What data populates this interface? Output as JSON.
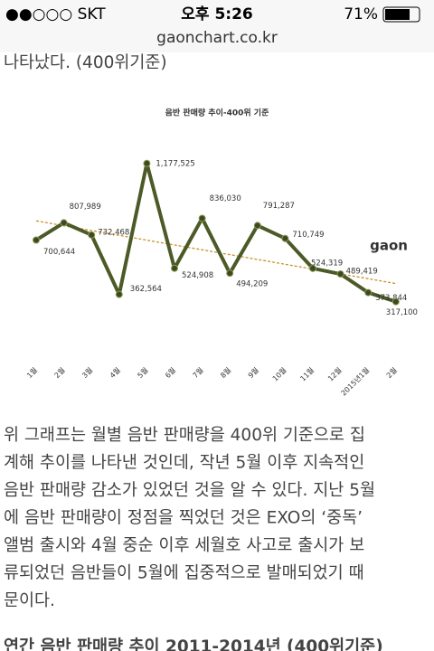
{
  "status_bar": {
    "carrier": "●●○○○ SKT",
    "time": "오후 5:26",
    "battery": "71%"
  },
  "url": "gaonchart.co.kr",
  "top_text": "나타났다. (400위기준)",
  "chart_data": {
    "type": "line",
    "title": "음반 판매량 추이-400위 기준",
    "logo": "gaon",
    "categories": [
      "1월",
      "2월",
      "3월",
      "4월",
      "5월",
      "6월",
      "7월",
      "8월",
      "9월",
      "10월",
      "11월",
      "12월",
      "2015년1월",
      "2월"
    ],
    "series": [
      {
        "name": "음반 판매량",
        "color": "#4b5a26",
        "values": [
          700644,
          807989,
          732468,
          362564,
          1177525,
          524908,
          836030,
          494209,
          791287,
          710749,
          524319,
          489419,
          373844,
          317100
        ],
        "value_labels": [
          "700,644",
          "807,989",
          "732,468",
          "362,564",
          "1,177,525",
          "524,908",
          "836,030",
          "494,209",
          "791,287",
          "710,749",
          "524,319",
          "489,419",
          "373,844",
          "317,100"
        ]
      }
    ],
    "trendline": {
      "color": "#c8902a",
      "values": [
        820000,
        430000
      ]
    },
    "ylim": [
      0,
      1300000
    ]
  },
  "paragraph": [
    "위 그래프는 월별 음반 판매량을 400위 기준으로 집",
    "계해 추이를 나타낸 것인데, 작년 5월 이후 지속적인",
    "음반 판매량 감소가 있었던 것을 알 수 있다. 지난 5월",
    "에 음반 판매량이 정점을 찍었던 것은 EXO의 ‘중독’",
    "앨범 출시와 4월 중순 이후 세월호 사고로 출시가 보",
    "류되었던 음반들이 5월에 집중적으로 발매되었기 때",
    "문이다."
  ],
  "footer_caption": "연간 음반 판매량 추이 2011-2014년 (400위기준)"
}
